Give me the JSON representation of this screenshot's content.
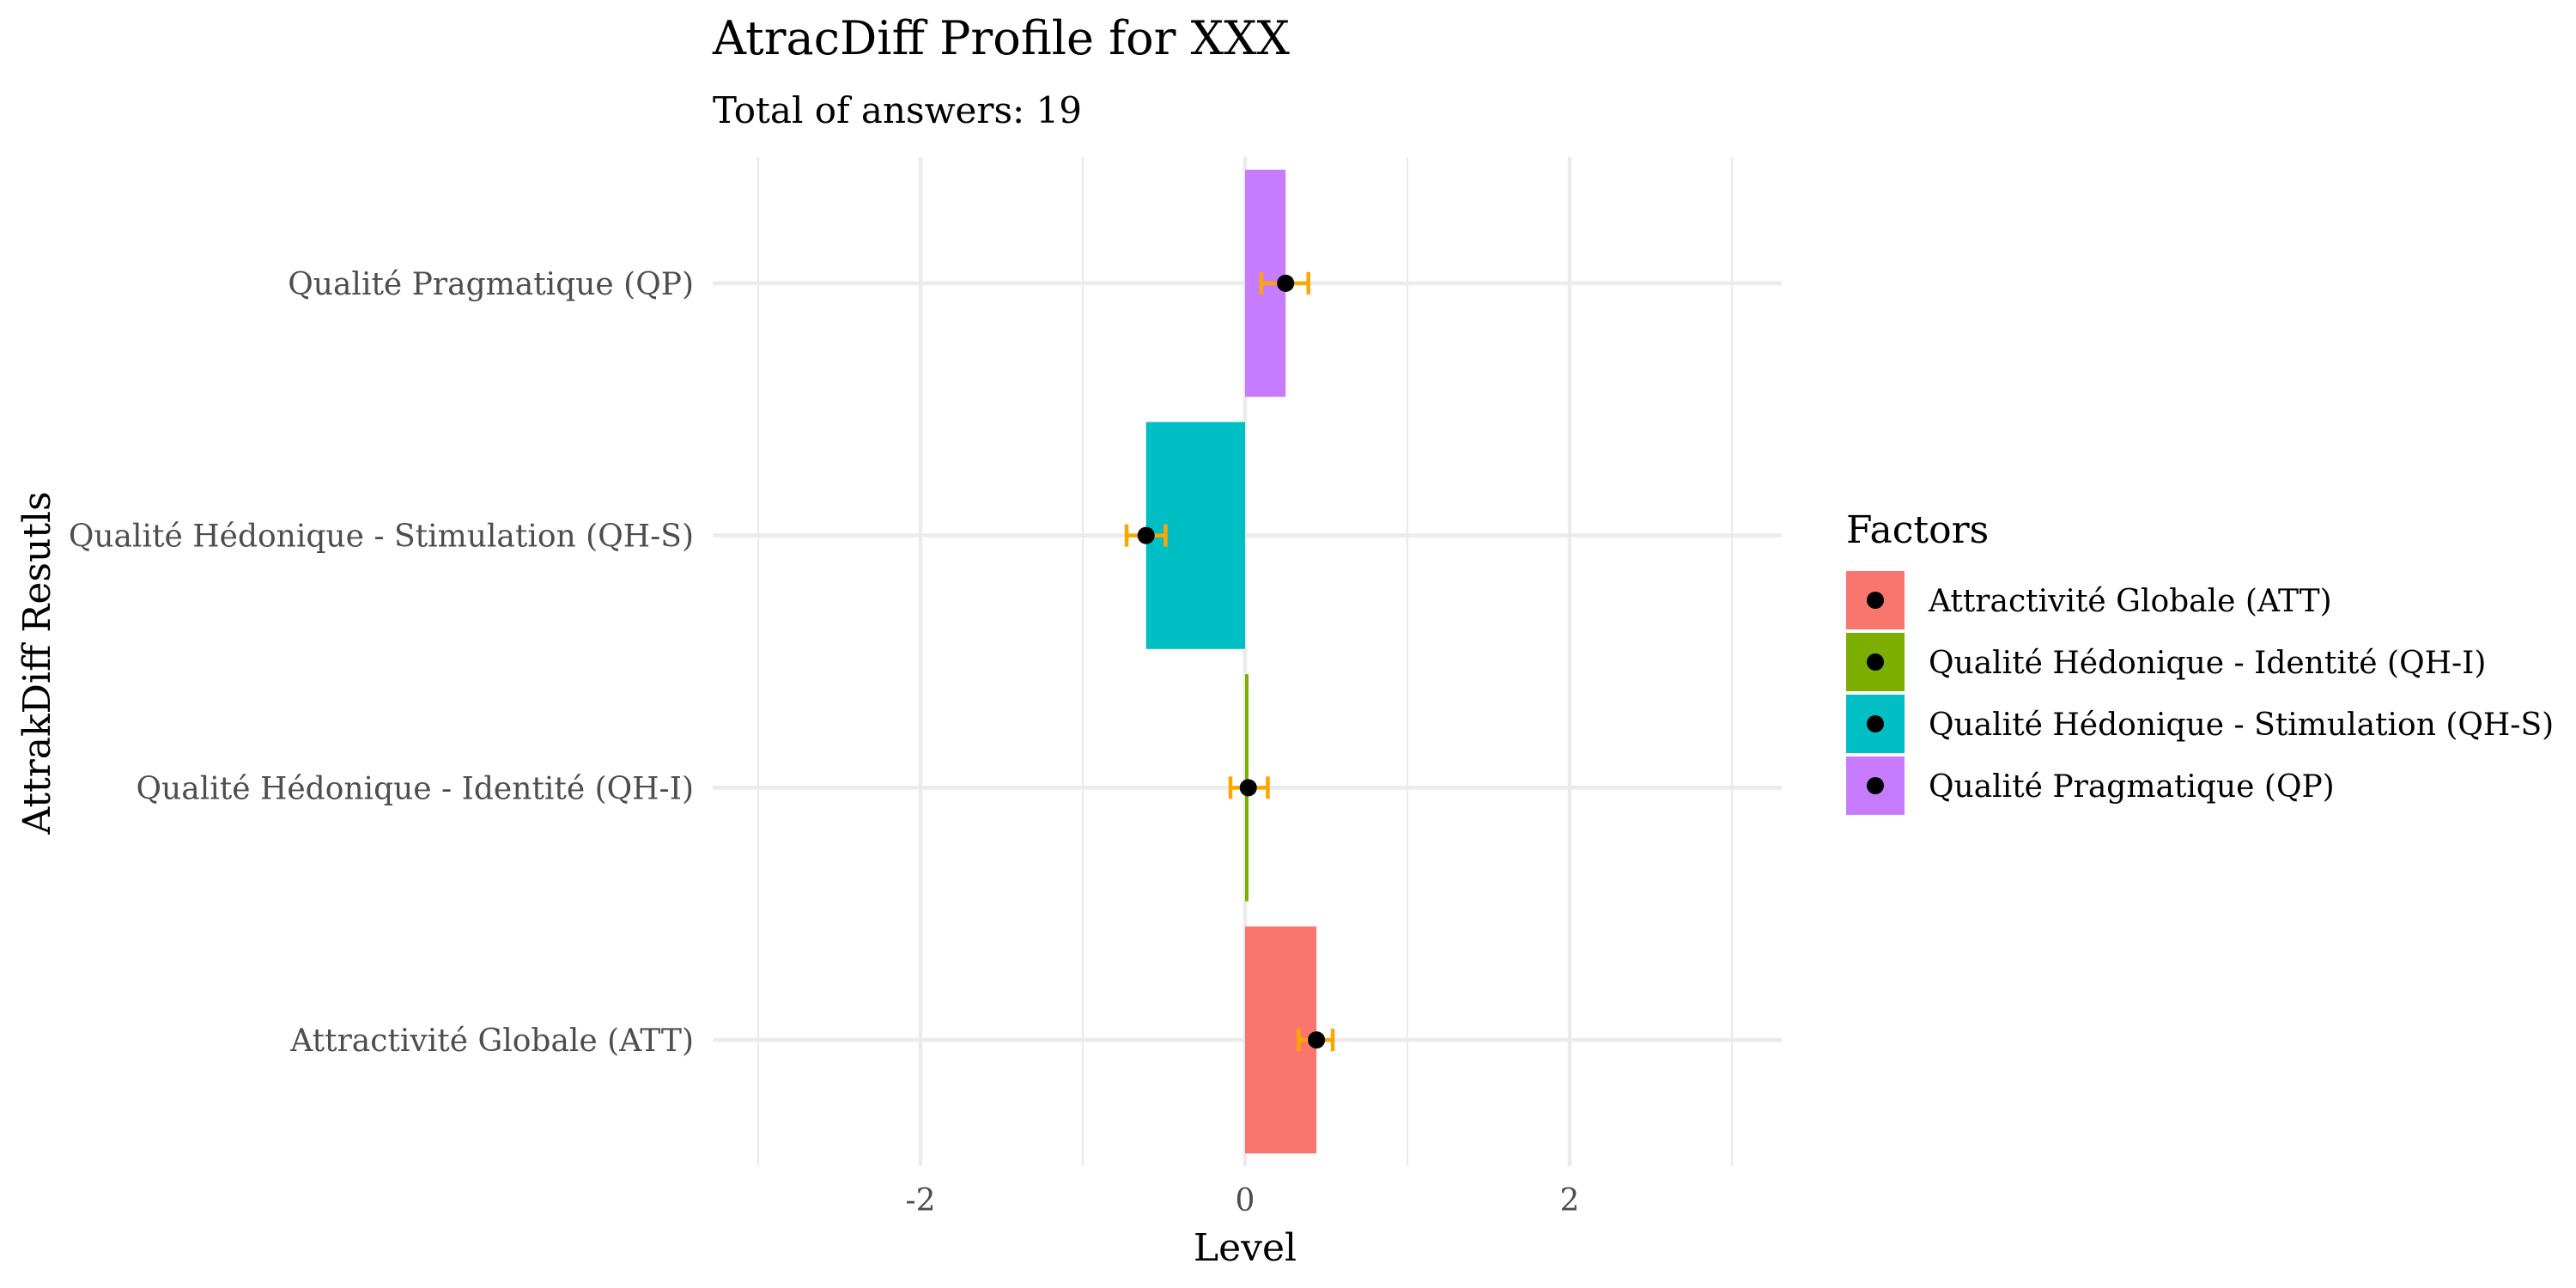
{
  "chart_data": {
    "type": "bar",
    "orientation": "horizontal",
    "title": "AtracDiff Profile for XXX",
    "subtitle": "Total of answers: 19",
    "xlabel": "Level",
    "ylabel": "AttrakDiff Resutls",
    "xlim": [
      -3.3,
      3.3
    ],
    "x_ticks": [
      -2,
      0,
      2
    ],
    "x_tick_labels": [
      "-2",
      "0",
      "2"
    ],
    "grid": true,
    "categories": [
      "Attractivité Globale (ATT)",
      "Qualité Hédonique - Identité (QH-I)",
      "Qualité Hédonique - Stimulation (QH-S)",
      "Qualité Pragmatique (QP)"
    ],
    "values": [
      0.44,
      0.02,
      -0.61,
      0.25
    ],
    "error_low": [
      0.33,
      -0.09,
      -0.73,
      0.1
    ],
    "error_high": [
      0.54,
      0.14,
      -0.49,
      0.39
    ],
    "colors": [
      "#F8766D",
      "#7CAE00",
      "#00BFC4",
      "#C77CFF"
    ],
    "point_color": "#000000",
    "errorbar_color": "#FFA500",
    "legend": {
      "title": "Factors",
      "placement": "right",
      "entries": [
        "Attractivité Globale (ATT)",
        "Qualité Hédonique - Identité (QH-I)",
        "Qualité Hédonique - Stimulation (QH-S)",
        "Qualité Pragmatique (QP)"
      ]
    }
  }
}
